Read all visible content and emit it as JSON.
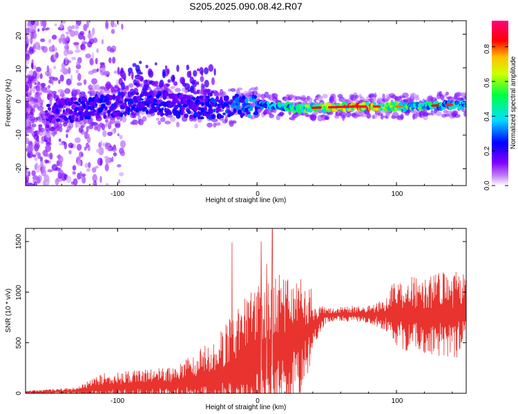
{
  "title": "S205.2025.090.08.42.R07",
  "chart_data": [
    {
      "type": "heatmap",
      "xlabel": "Height of straight line (km)",
      "ylabel": "Frequency (Hz)",
      "xlim": [
        -166,
        150
      ],
      "ylim": [
        -25,
        24
      ],
      "xticks": [
        "-100",
        "0",
        "100"
      ],
      "yticks": [
        "-20",
        "-10",
        "0",
        "10",
        "20"
      ],
      "colorbar": {
        "label": "Normalized spectral amplitude",
        "range": [
          0,
          0.95
        ],
        "ticks": [
          "0.0",
          "0.2",
          "0.4",
          "0.6",
          "0.8"
        ],
        "colormap": "rainbow",
        "colors": [
          "#ffffff",
          "#a020f0",
          "#0000ff",
          "#00e0ff",
          "#00ff00",
          "#ffff00",
          "#ff0000",
          "#ff00ff"
        ]
      },
      "ridge": {
        "description_points": [
          {
            "x": -150,
            "f": -3,
            "amp": 0.2
          },
          {
            "x": -120,
            "f": -2,
            "amp": 0.25
          },
          {
            "x": -80,
            "f": 0,
            "amp": 0.25
          },
          {
            "x": -40,
            "f": -2,
            "amp": 0.25
          },
          {
            "x": 0,
            "f": -1,
            "amp": 0.35
          },
          {
            "x": 30,
            "f": -2,
            "amp": 0.55
          },
          {
            "x": 70,
            "f": -1.5,
            "amp": 0.85
          },
          {
            "x": 110,
            "f": -1.5,
            "amp": 0.55
          },
          {
            "x": 140,
            "f": -1,
            "amp": 0.45
          }
        ]
      },
      "grid": false
    },
    {
      "type": "line",
      "xlabel": "Height of straight line (km)",
      "ylabel": "SNR (10 * v/v)",
      "xlim": [
        -166,
        150
      ],
      "ylim": [
        0,
        1630
      ],
      "xticks": [
        "-100",
        "0",
        "100"
      ],
      "yticks": [
        "0",
        "500",
        "1000",
        "1500"
      ],
      "color": "#e8332e",
      "envelope": [
        {
          "x": -166,
          "baseline": 10,
          "spread": 15
        },
        {
          "x": -130,
          "baseline": 20,
          "spread": 40
        },
        {
          "x": -110,
          "baseline": 60,
          "spread": 140
        },
        {
          "x": -60,
          "baseline": 80,
          "spread": 180
        },
        {
          "x": -30,
          "baseline": 150,
          "spread": 400
        },
        {
          "x": -10,
          "baseline": 250,
          "spread": 700
        },
        {
          "x": 10,
          "baseline": 400,
          "spread": 800
        },
        {
          "x": 30,
          "baseline": 550,
          "spread": 600
        },
        {
          "x": 50,
          "baseline": 780,
          "spread": 120
        },
        {
          "x": 80,
          "baseline": 780,
          "spread": 150
        },
        {
          "x": 100,
          "baseline": 780,
          "spread": 350
        },
        {
          "x": 150,
          "baseline": 780,
          "spread": 450
        }
      ],
      "peaks": [
        {
          "x": -18,
          "y": 1490
        },
        {
          "x": 3,
          "y": 1500
        },
        {
          "x": 11,
          "y": 1630
        },
        {
          "x": 7,
          "y": 1280
        }
      ],
      "grid": false
    }
  ]
}
